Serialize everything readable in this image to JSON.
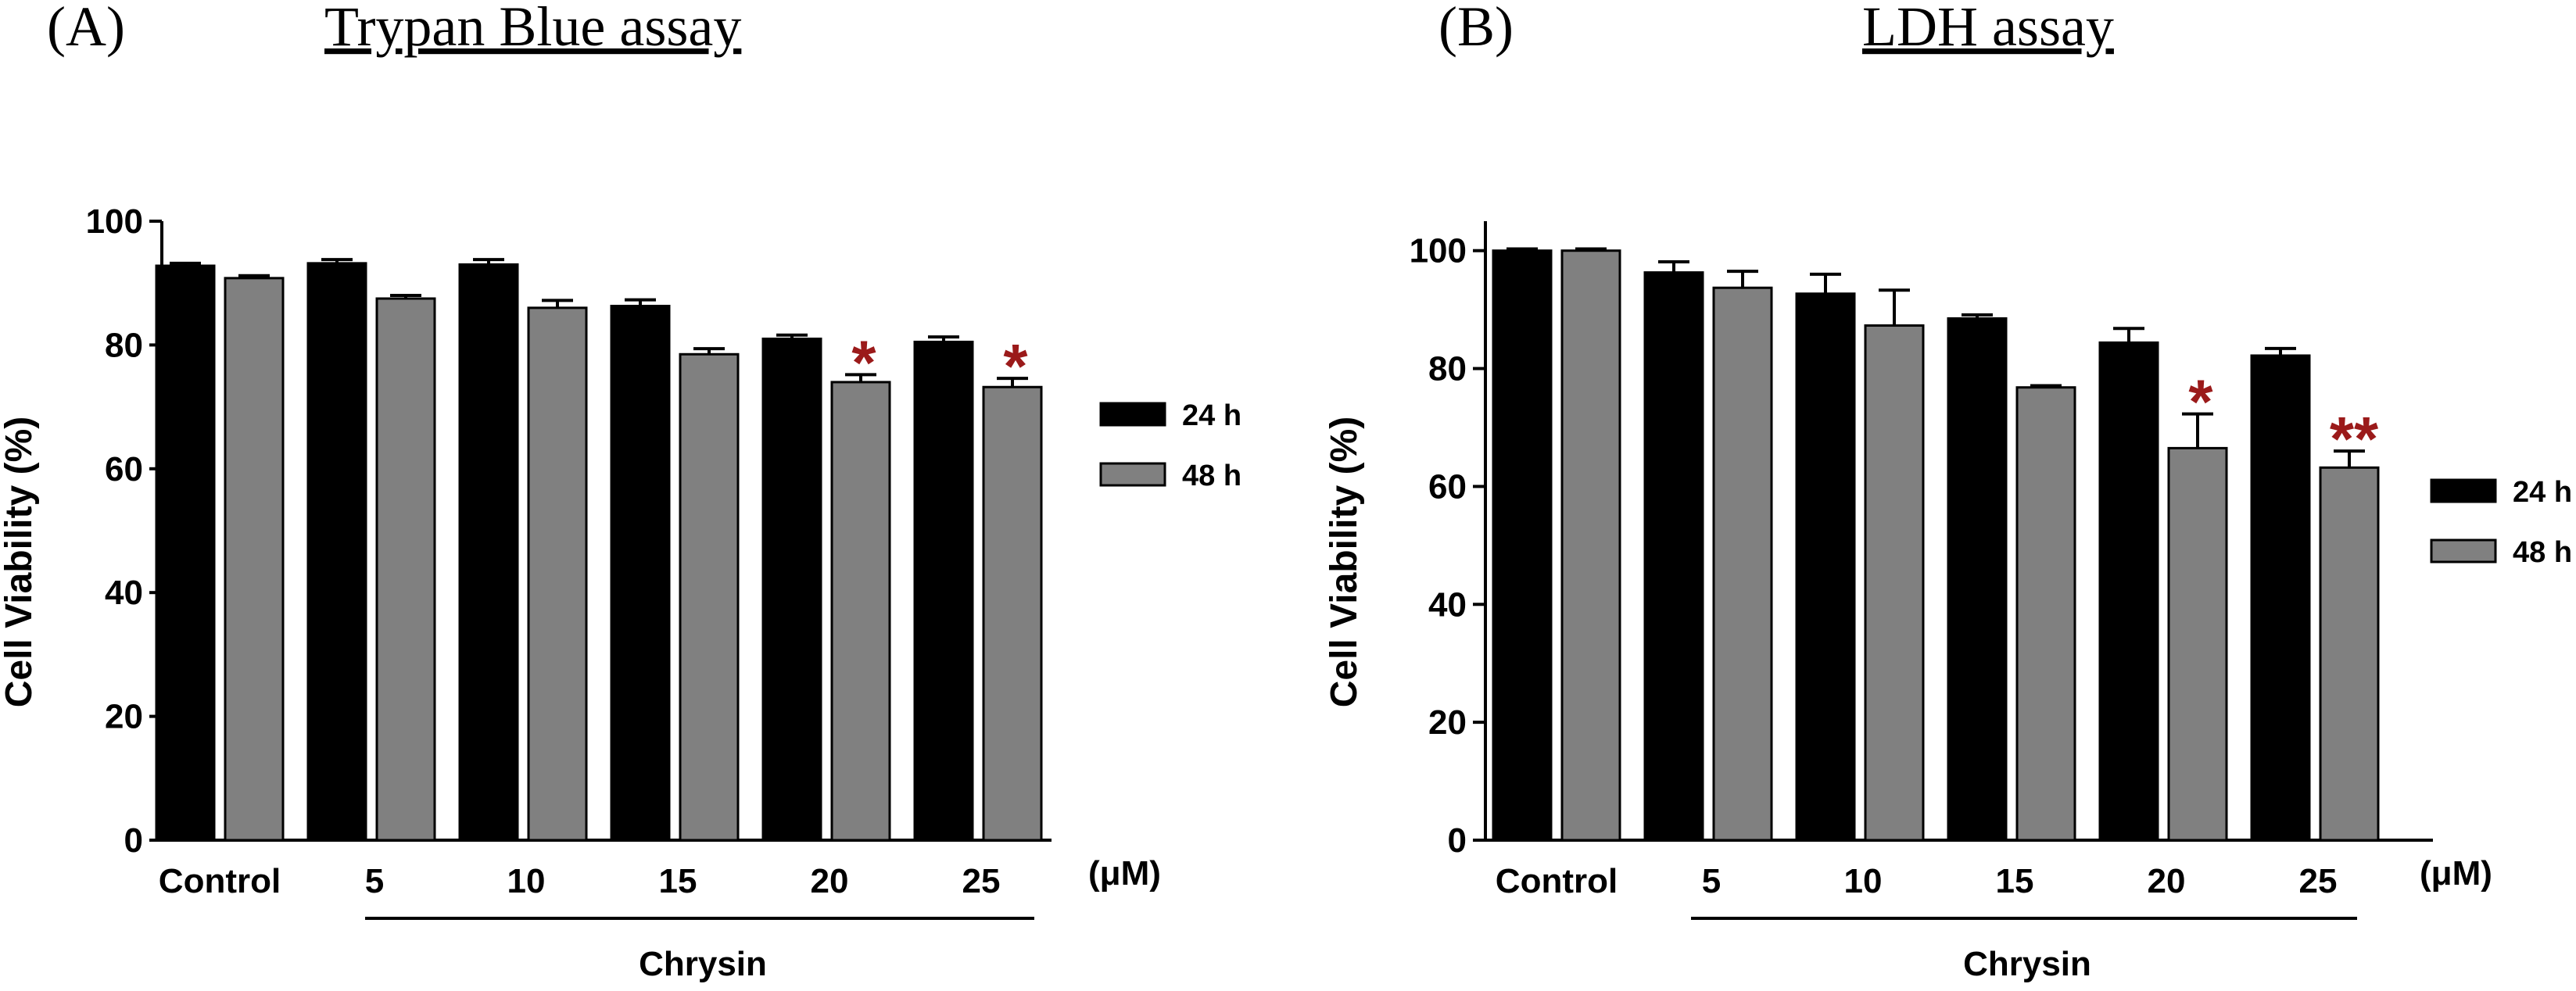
{
  "colors": {
    "series_24h": "#000000",
    "series_48h": "#808080",
    "significance": "#9B1A1A"
  },
  "chart_data": [
    {
      "type": "bar",
      "panel_label": "(A)",
      "title": "Trypan Blue assay",
      "ylabel": "Cell Viability (%)",
      "xlabel": "",
      "ylim": [
        0,
        100
      ],
      "yticks": [
        0,
        20,
        40,
        60,
        80,
        100
      ],
      "categories": [
        "Control",
        "5",
        "10",
        "15",
        "20",
        "25"
      ],
      "unit_label": "(μM)",
      "group_label": "Chrysin",
      "grid": false,
      "legend_position": "right",
      "series": [
        {
          "name": "24 h",
          "color": "#000000",
          "values": [
            92.8,
            93.2,
            93.0,
            86.3,
            81.0,
            80.5
          ],
          "errors": [
            0.4,
            0.6,
            0.8,
            1.0,
            0.6,
            0.8
          ]
        },
        {
          "name": "48 h",
          "color": "#808080",
          "values": [
            90.8,
            87.5,
            86.0,
            78.5,
            74.0,
            73.2
          ],
          "errors": [
            0.4,
            0.5,
            1.2,
            0.9,
            1.2,
            1.4
          ]
        }
      ],
      "annotations": [
        {
          "category": "20",
          "series": "48 h",
          "text": "*"
        },
        {
          "category": "25",
          "series": "48 h",
          "text": "*"
        }
      ]
    },
    {
      "type": "bar",
      "panel_label": "(B)",
      "title": "LDH assay",
      "ylabel": "Cell Viability (%)",
      "xlabel": "",
      "ylim": [
        0,
        105
      ],
      "yticks": [
        0,
        20,
        40,
        60,
        80,
        100
      ],
      "categories": [
        "Control",
        "5",
        "10",
        "15",
        "20",
        "25"
      ],
      "unit_label": "(μM)",
      "group_label": "Chrysin",
      "grid": false,
      "legend_position": "right",
      "series": [
        {
          "name": "24 h",
          "color": "#000000",
          "values": [
            100.0,
            96.3,
            92.7,
            88.5,
            84.4,
            82.2
          ],
          "errors": [
            0.3,
            1.8,
            3.3,
            0.6,
            2.4,
            1.2
          ]
        },
        {
          "name": "48 h",
          "color": "#808080",
          "values": [
            100.0,
            93.7,
            87.3,
            76.8,
            66.5,
            63.2
          ],
          "errors": [
            0.3,
            2.8,
            6.0,
            0.3,
            5.8,
            2.8
          ]
        }
      ],
      "annotations": [
        {
          "category": "20",
          "series": "48 h",
          "text": "*"
        },
        {
          "category": "25",
          "series": "48 h",
          "text": "**"
        }
      ]
    }
  ]
}
